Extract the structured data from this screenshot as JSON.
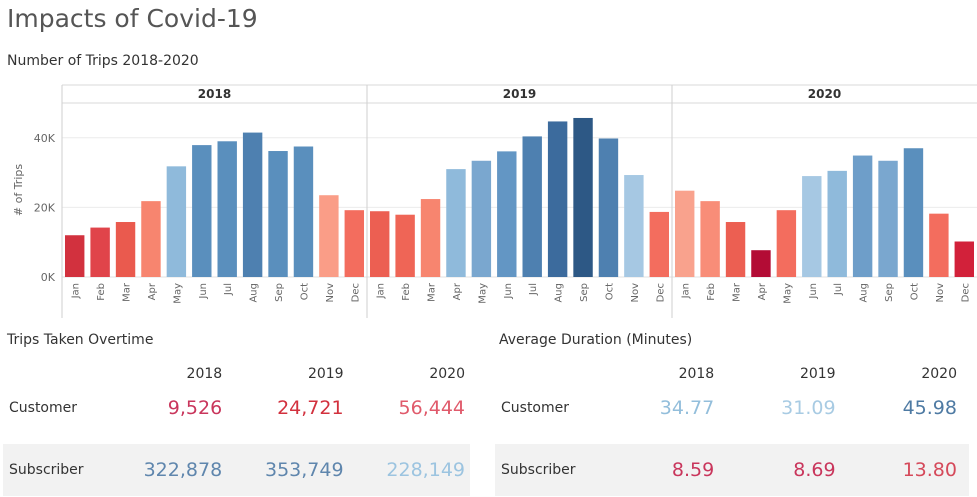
{
  "dashboard": {
    "title": "Impacts of Covid-19"
  },
  "trips_chart": {
    "title": "Number of Trips 2018-2020"
  },
  "chart_data": [
    {
      "type": "bar",
      "title": "Number of Trips 2018-2020",
      "xlabel": "",
      "ylabel": "# of Trips",
      "ylim": [
        0,
        50000
      ],
      "yticks": [
        0,
        20000,
        40000
      ],
      "ytick_labels": [
        "0K",
        "20K",
        "40K"
      ],
      "grid": true,
      "color_scale": "diverging red-blue",
      "panels": [
        "2018",
        "2019",
        "2020"
      ],
      "categories": [
        "Jan",
        "Feb",
        "Mar",
        "Apr",
        "May",
        "Jun",
        "Jul",
        "Aug",
        "Sep",
        "Oct",
        "Nov",
        "Dec"
      ],
      "series": [
        {
          "name": "2018",
          "values": [
            12000,
            14200,
            15800,
            21800,
            31800,
            37900,
            39000,
            41500,
            36200,
            37500,
            23500,
            19200
          ]
        },
        {
          "name": "2019",
          "values": [
            18900,
            17900,
            22400,
            31000,
            33400,
            36100,
            40400,
            44700,
            45700,
            39800,
            29300,
            18700
          ]
        },
        {
          "name": "2020",
          "values": [
            24800,
            21800,
            15800,
            7700,
            19200,
            29000,
            30500,
            34900,
            33400,
            37000,
            18200,
            10200
          ]
        }
      ]
    },
    {
      "type": "table",
      "title": "Trips Taken Overtime",
      "columns": [
        "2018",
        "2019",
        "2020"
      ],
      "rows": [
        {
          "label": "Customer",
          "values": [
            "9,526",
            "24,721",
            "56,444"
          ]
        },
        {
          "label": "Subscriber",
          "values": [
            "322,878",
            "353,749",
            "228,149"
          ]
        }
      ]
    },
    {
      "type": "table",
      "title": "Average Duration (Minutes)",
      "columns": [
        "2018",
        "2019",
        "2020"
      ],
      "rows": [
        {
          "label": "Customer",
          "values": [
            "34.77",
            "31.09",
            "45.98"
          ]
        },
        {
          "label": "Subscriber",
          "values": [
            "8.59",
            "8.69",
            "13.80"
          ]
        }
      ]
    }
  ],
  "colors": {
    "bar_colors": [
      [
        "#d2313e",
        "#e0444a",
        "#ea5a4e",
        "#f7856f",
        "#8fbadb",
        "#5a8fbd",
        "#5a8fbd",
        "#4e80b0",
        "#5a8fbd",
        "#5a8fbd",
        "#fa9d87",
        "#f36d5e"
      ],
      [
        "#ec5f52",
        "#ef6556",
        "#f7856f",
        "#8fbadb",
        "#7aa7cf",
        "#6396c4",
        "#4e80b0",
        "#3c6b9d",
        "#2d5885",
        "#4e80b0",
        "#a6c8e3",
        "#f36d5e"
      ],
      [
        "#f9a28d",
        "#f88d78",
        "#ec5f52",
        "#b30c35",
        "#f36d5e",
        "#a6c8e3",
        "#8fbadb",
        "#6e9ec9",
        "#7aa7cf",
        "#5a8fbd",
        "#f36d5e",
        "#d2213a"
      ]
    ],
    "trips_table": [
      [
        "#c9365c",
        "#d2313e",
        "#e05a6b"
      ],
      [
        "#5f86ad",
        "#5f86ad",
        "#9cc4e0"
      ]
    ],
    "duration_table": [
      [
        "#93bedb",
        "#a8cbe3",
        "#4e7aa3"
      ],
      [
        "#c9365c",
        "#c9365c",
        "#d5495a"
      ]
    ]
  }
}
